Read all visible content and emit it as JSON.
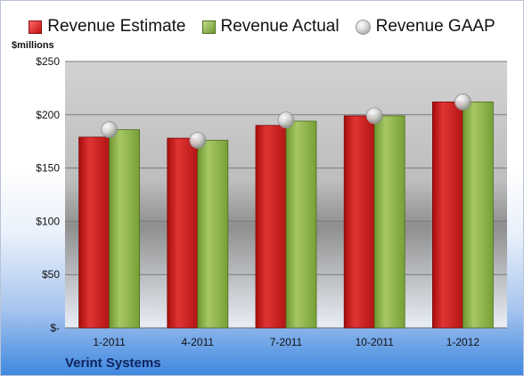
{
  "legend": {
    "estimate_label": "Revenue Estimate",
    "actual_label": "Revenue Actual",
    "gaap_label": "Revenue GAAP"
  },
  "unit_label": "$millions",
  "company_label": "Verint Systems",
  "colors": {
    "estimate": "#cc1c1c",
    "actual": "#8bb244",
    "gaap": "#c8c8c8",
    "company_text": "#10245e"
  },
  "chart_data": {
    "type": "bar",
    "categories": [
      "1-2011",
      "4-2011",
      "7-2011",
      "10-2011",
      "1-2012"
    ],
    "series": [
      {
        "name": "Revenue Estimate",
        "values": [
          179,
          178,
          190,
          199,
          212
        ]
      },
      {
        "name": "Revenue Actual",
        "values": [
          186,
          176,
          194,
          199,
          212
        ]
      },
      {
        "name": "Revenue GAAP",
        "values": [
          186,
          176,
          195,
          199,
          212
        ]
      }
    ],
    "yticks": [
      "$-",
      "$50",
      "$100",
      "$150",
      "$200",
      "$250"
    ],
    "ylim": [
      0,
      250
    ],
    "ylabel": "$millions",
    "title": "",
    "grid": true,
    "legend_position": "top"
  }
}
